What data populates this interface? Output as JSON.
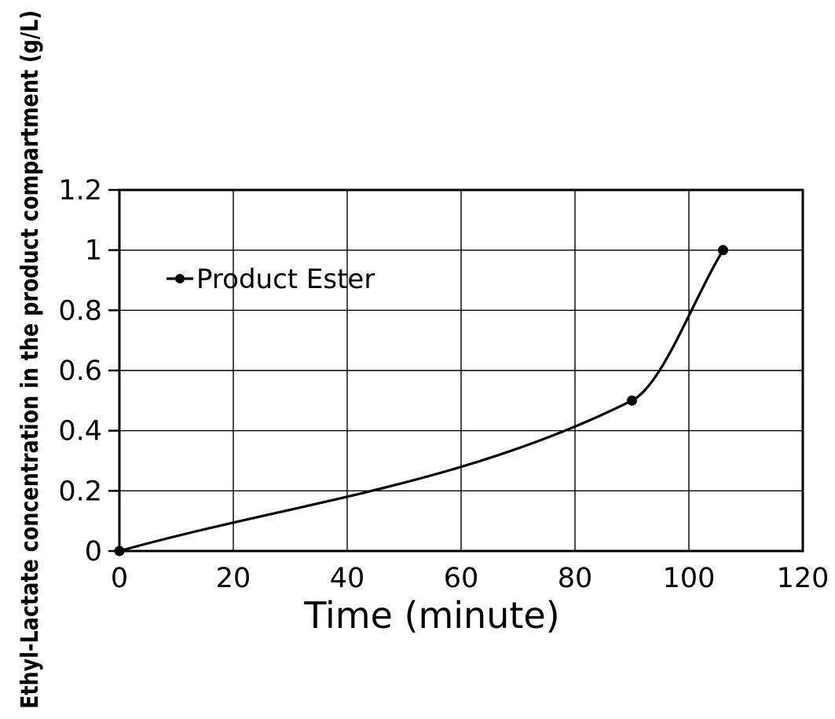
{
  "chart_data": {
    "type": "line",
    "title": "",
    "xlabel": "Time  (minute)",
    "ylabel": "Ethyl-Lactate concentration in the product compartment (g/L)",
    "xlim": [
      0,
      120
    ],
    "ylim": [
      0,
      1.2
    ],
    "x_ticks": [
      0,
      20,
      40,
      60,
      80,
      100,
      120
    ],
    "x_tick_labels": [
      "0",
      "20",
      "40",
      "60",
      "80",
      "100",
      "120"
    ],
    "y_ticks": [
      0,
      0.2,
      0.4,
      0.6,
      0.8,
      1.0,
      1.2
    ],
    "y_tick_labels": [
      "0",
      "0.2",
      "0.4",
      "0.6",
      "0.8",
      "1",
      "1.2"
    ],
    "grid": true,
    "legend_position": "top-left",
    "series": [
      {
        "name": "Product Ester",
        "color": "#000000",
        "marker": "circle",
        "x": [
          0,
          90,
          106
        ],
        "y": [
          0,
          0.5,
          1.0
        ]
      }
    ]
  }
}
